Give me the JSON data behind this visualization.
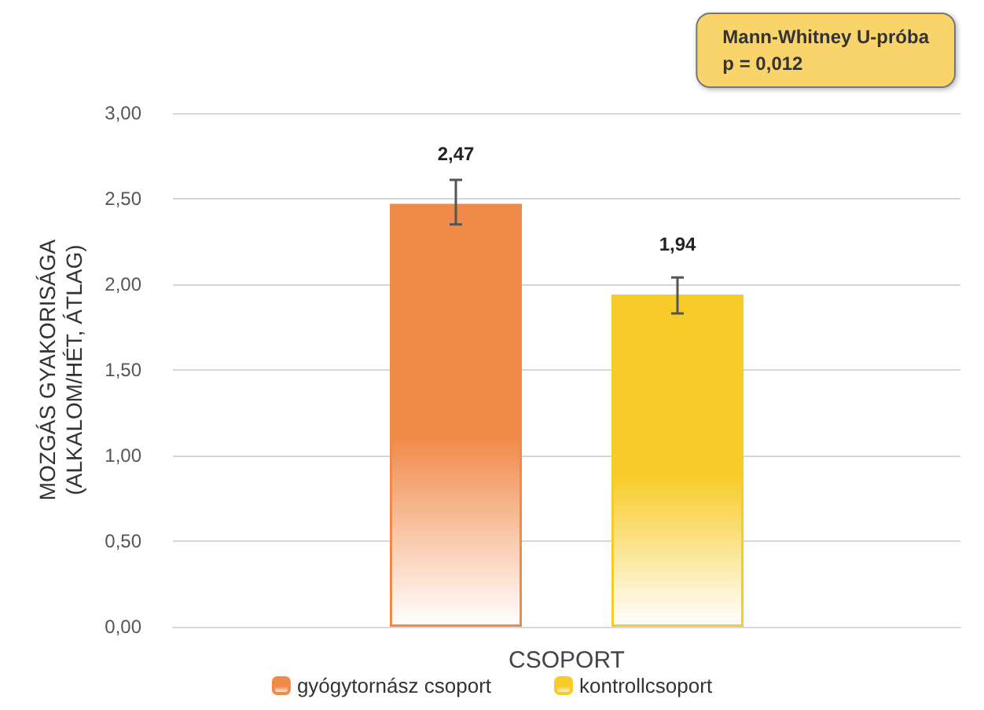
{
  "chart_data": {
    "type": "bar",
    "xlabel": "CSOPORT",
    "ylabel": "MOZGÁS GYAKORISÁGA\n(ALKALOM/HÉT, ÁTLAG)",
    "categories": [
      null
    ],
    "series": [
      {
        "name": "gyógytornász csoport",
        "color": "#f08a48",
        "values": [
          2.47
        ],
        "errors": [
          [
            2.35,
            2.61
          ]
        ],
        "value_labels": [
          "2,47"
        ]
      },
      {
        "name": "kontrollcsoport",
        "color": "#f7cc2a",
        "values": [
          1.94
        ],
        "errors": [
          [
            1.83,
            2.04
          ]
        ],
        "value_labels": [
          "1,94"
        ]
      }
    ],
    "ylim": [
      0,
      3
    ],
    "yticks": [
      {
        "value": 0,
        "label": "0,00"
      },
      {
        "value": 0.5,
        "label": "0,50"
      },
      {
        "value": 1,
        "label": "1,00"
      },
      {
        "value": 1.5,
        "label": "1,50"
      },
      {
        "value": 2,
        "label": "2,00"
      },
      {
        "value": 2.5,
        "label": "2,50"
      },
      {
        "value": 3,
        "label": "3,00"
      }
    ],
    "annotations": [
      "Mann-Whitney U-próba\np = 0,012"
    ],
    "grid": "y",
    "legend": "bottom"
  }
}
